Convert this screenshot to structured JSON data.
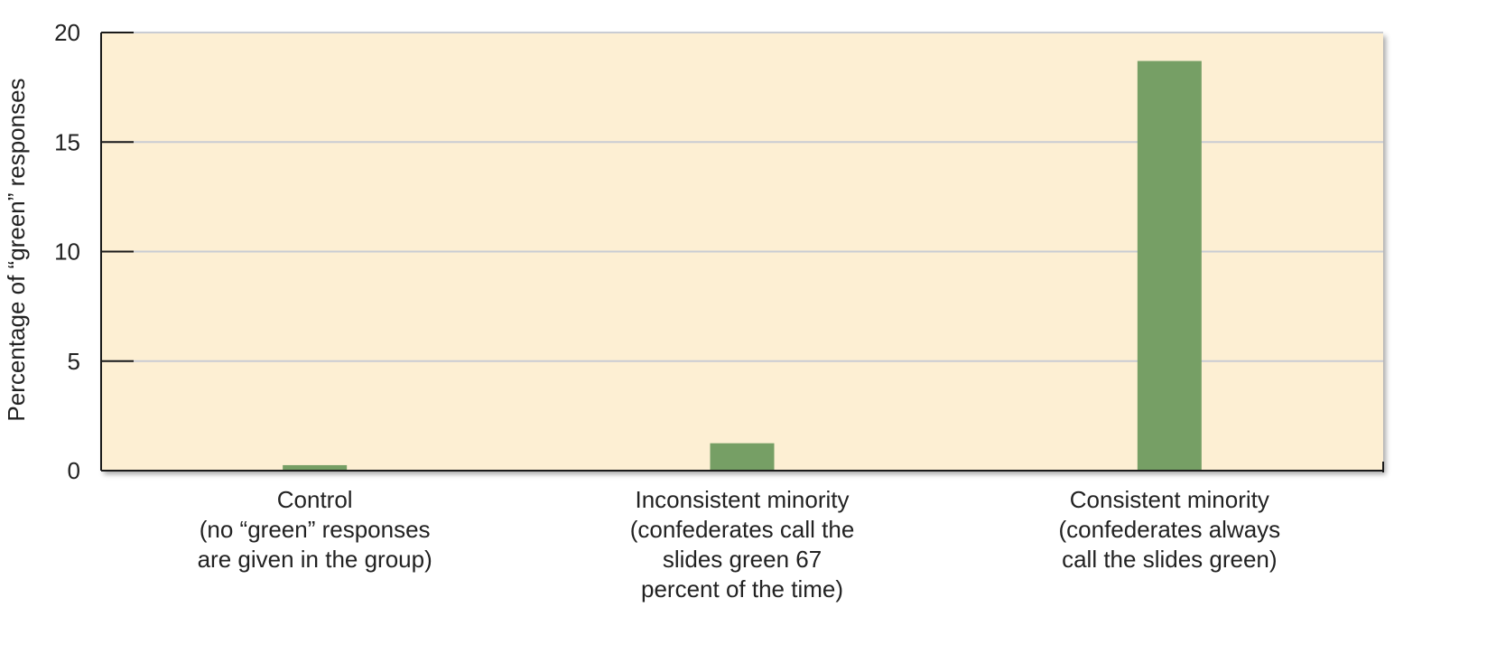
{
  "chart_data": {
    "type": "bar",
    "title": "",
    "xlabel": "",
    "ylabel": "Percentage of “green” responses",
    "ylim": [
      0,
      20
    ],
    "yticks": [
      0,
      5,
      10,
      15,
      20
    ],
    "grid": true,
    "categories": [
      [
        "Control",
        "(no “green” responses",
        "are given in the group)"
      ],
      [
        "Inconsistent minority",
        "(confederates call the",
        "slides green 67",
        "percent of the time)"
      ],
      [
        "Consistent minority",
        "(confederates always",
        "call the slides green)"
      ]
    ],
    "values": [
      0.25,
      1.25,
      18.7
    ]
  },
  "colors": {
    "plot_background": "#fdefd3",
    "bar": "#769f65",
    "gridline": "#c9ccd3",
    "axis": "#1a1a1a"
  }
}
